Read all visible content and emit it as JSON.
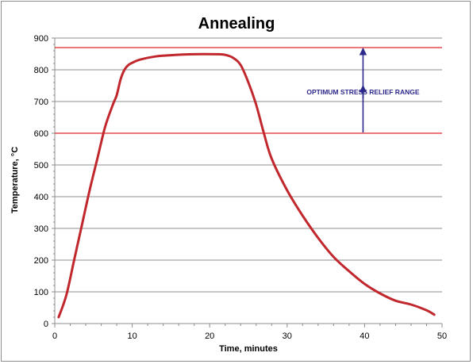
{
  "chart_data": {
    "type": "line",
    "title": "Annealing",
    "xlabel": "Time, minutes",
    "ylabel": "Temperature, °C",
    "xlim": [
      0,
      50
    ],
    "ylim": [
      0,
      900
    ],
    "x_ticks": [
      0,
      10,
      20,
      30,
      40,
      50
    ],
    "y_ticks": [
      0,
      100,
      200,
      300,
      400,
      500,
      600,
      700,
      800,
      900
    ],
    "grid": "horizontal",
    "series_color": "#c0282d",
    "reference_line_color": "#e0262a",
    "annotation_color": "#2e2a8c",
    "series": [
      {
        "x": [
          0.5,
          1.5,
          2.5,
          3.5,
          4.5,
          5.5,
          6.5,
          7.5,
          8.0,
          8.5,
          9.0,
          9.5,
          10.0,
          11.0,
          13.0,
          15.0,
          18.0,
          21.0,
          22.0,
          23.0,
          24.0,
          25.0,
          26.0,
          27.0,
          28.0,
          30.0,
          32.0,
          34.0,
          36.0,
          38.0,
          40.0,
          42.0,
          44.0,
          46.0,
          48.0,
          49.0
        ],
        "y": [
          20,
          90,
          200,
          310,
          420,
          520,
          620,
          690,
          720,
          770,
          800,
          815,
          822,
          832,
          842,
          846,
          849,
          849,
          847,
          838,
          815,
          760,
          690,
          600,
          520,
          420,
          340,
          270,
          210,
          165,
          125,
          95,
          72,
          60,
          42,
          28
        ]
      }
    ],
    "reference_lines": [
      {
        "y": 870
      },
      {
        "y": 600
      }
    ],
    "annotation": {
      "text": "OPTIMUM STRESS RELIEF RANGE",
      "x": 39.8,
      "y_from": 600,
      "y_to": 870
    }
  }
}
